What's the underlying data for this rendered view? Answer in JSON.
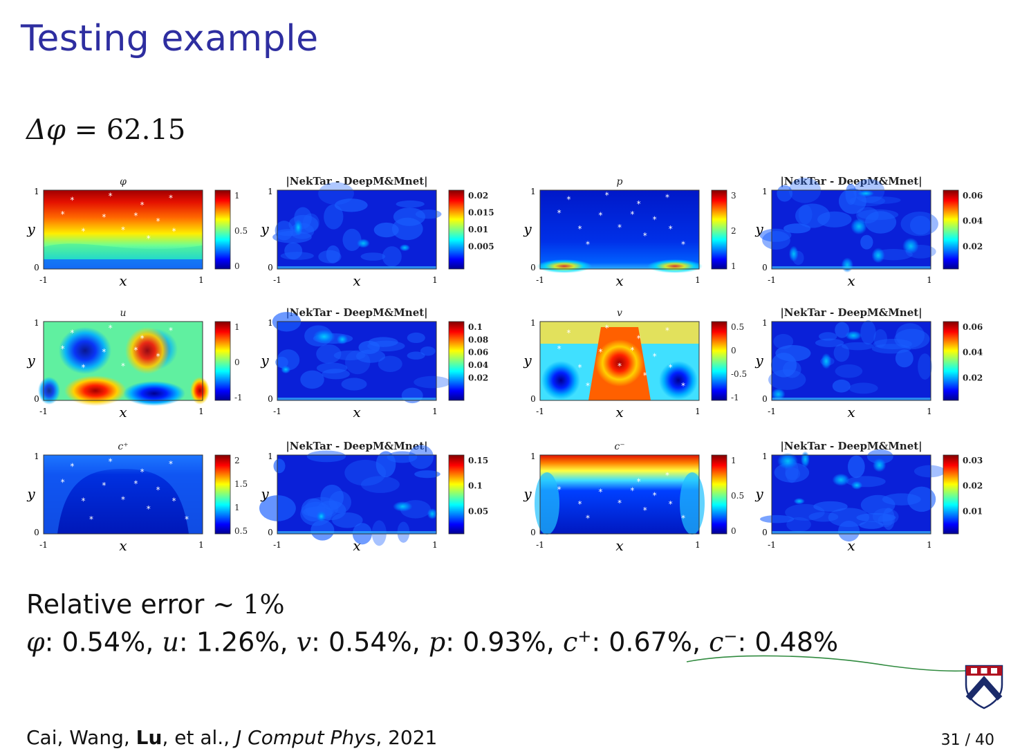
{
  "slide": {
    "title": "Testing example",
    "delta_lhs": "Δφ",
    "delta_eq": " = ",
    "delta_value": "62.15",
    "relative_error_label": "Relative error",
    "relative_error_sym": " ∼ ",
    "relative_error_value": "1%",
    "errors": [
      {
        "var": "φ",
        "sup": "",
        "value": "0.54%"
      },
      {
        "var": "u",
        "sup": "",
        "value": "1.26%"
      },
      {
        "var": "v",
        "sup": "",
        "value": "0.54%"
      },
      {
        "var": "p",
        "sup": "",
        "value": "0.93%"
      },
      {
        "var": "c",
        "sup": "+",
        "value": "0.67%"
      },
      {
        "var": "c",
        "sup": "−",
        "value": "0.48%"
      }
    ],
    "citation": {
      "authors_pre": "Cai, Wang, ",
      "author_bold": "Lu",
      "authors_post": ", et al., ",
      "journal": "J Comput Phys",
      "year": ", 2021"
    },
    "page": "31 / 40",
    "logo": "penn-shield-icon",
    "ink_color": "#2f8a3e"
  },
  "figure_labels": {
    "xlabel": "x",
    "ylabel": "y",
    "x_ticks": [
      "-1",
      "1"
    ],
    "y_ticks": [
      "0",
      "1"
    ]
  },
  "panels": [
    {
      "title": "φ",
      "kind": "phi",
      "cbar": [
        "1",
        "0.5",
        "0"
      ]
    },
    {
      "title": "|NekTar - DeepM&Mnet|",
      "kind": "err1",
      "cbar": [
        "0.02",
        "0.015",
        "0.01",
        "0.005"
      ]
    },
    {
      "title": "p",
      "kind": "p",
      "cbar": [
        "3",
        "2",
        "1"
      ]
    },
    {
      "title": "|NekTar - DeepM&Mnet|",
      "kind": "err2",
      "cbar": [
        "0.06",
        "0.04",
        "0.02"
      ]
    },
    {
      "title": "u",
      "kind": "u",
      "cbar": [
        "1",
        "0",
        "-1"
      ]
    },
    {
      "title": "|NekTar - DeepM&Mnet|",
      "kind": "err3",
      "cbar": [
        "0.1",
        "0.08",
        "0.06",
        "0.04",
        "0.02"
      ]
    },
    {
      "title": "v",
      "kind": "v",
      "cbar": [
        "0.5",
        "0",
        "-0.5",
        "-1"
      ]
    },
    {
      "title": "|NekTar - DeepM&Mnet|",
      "kind": "err4",
      "cbar": [
        "0.06",
        "0.04",
        "0.02"
      ]
    },
    {
      "title": "c⁺",
      "kind": "cp",
      "cbar": [
        "2",
        "1.5",
        "1",
        "0.5"
      ]
    },
    {
      "title": "|NekTar - DeepM&Mnet|",
      "kind": "err5",
      "cbar": [
        "0.15",
        "0.1",
        "0.05"
      ]
    },
    {
      "title": "c⁻",
      "kind": "cm",
      "cbar": [
        "1",
        "0.5",
        "0"
      ]
    },
    {
      "title": "|NekTar - DeepM&Mnet|",
      "kind": "err6",
      "cbar": [
        "0.03",
        "0.02",
        "0.01"
      ]
    }
  ]
}
